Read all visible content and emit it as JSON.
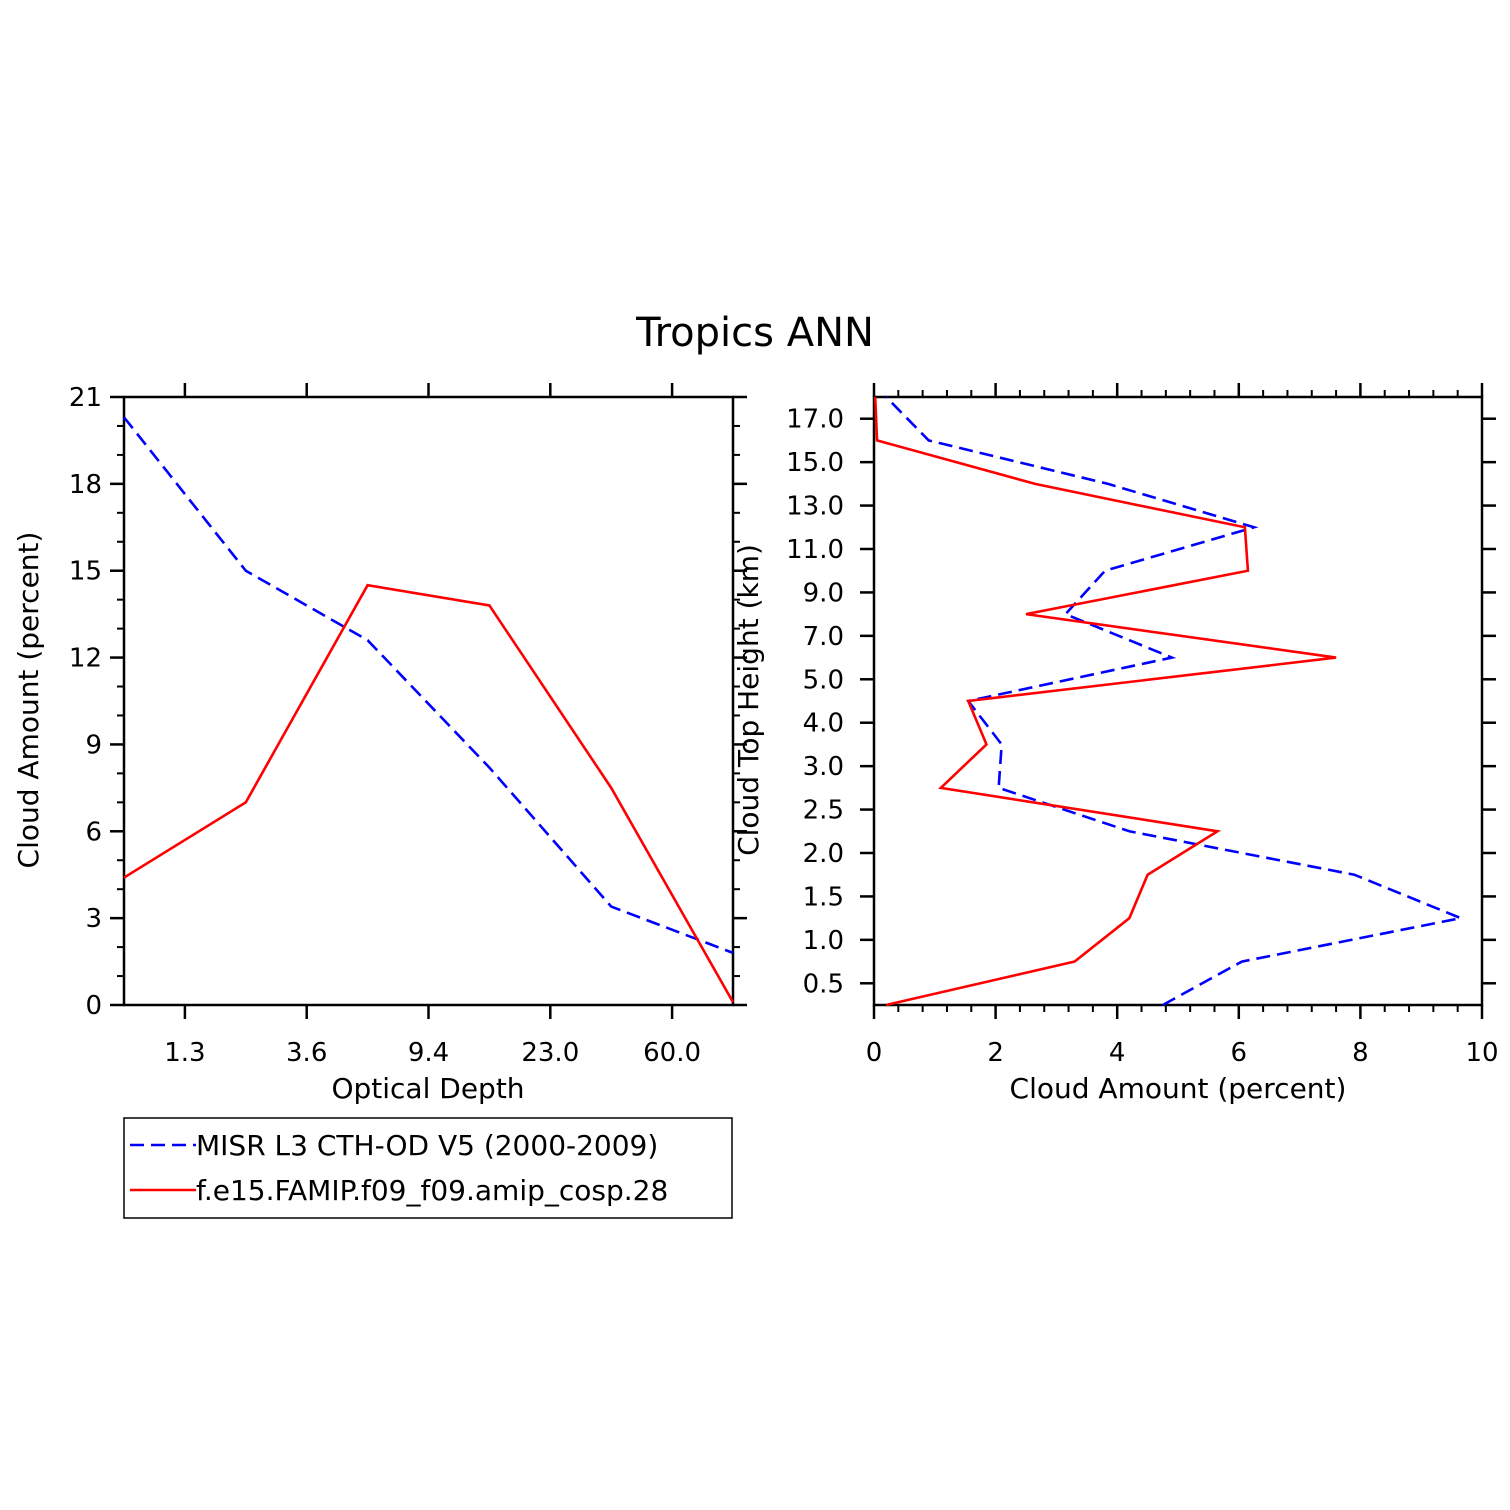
{
  "title": "Tropics ANN",
  "colors": {
    "obs": "#0000ff",
    "model": "#ff0000",
    "axis": "#000000"
  },
  "legend": [
    {
      "label": "MISR L3 CTH-OD V5 (2000-2009)",
      "color": "#0000ff",
      "dash": true
    },
    {
      "label": "f.e15.FAMIP.f09_f09.amip_cosp.28",
      "color": "#ff0000",
      "dash": false
    }
  ],
  "chart_data": [
    {
      "type": "line",
      "xlabel": "Optical Depth",
      "ylabel": "Cloud Amount (percent)",
      "x_tick_labels": [
        "1.3",
        "3.6",
        "9.4",
        "23.0",
        "60.0"
      ],
      "x_tick_positions": [
        1,
        2,
        3,
        4,
        5
      ],
      "xlim": [
        0.5,
        5.5
      ],
      "x": [
        0.5,
        1.5,
        2.5,
        3.5,
        4.5,
        5.5
      ],
      "ylim": [
        0,
        21
      ],
      "y_ticks": [
        0,
        3,
        6,
        9,
        12,
        15,
        18,
        21
      ],
      "series": [
        {
          "name": "MISR L3 CTH-OD V5 (2000-2009)",
          "values": [
            20.3,
            15.0,
            12.6,
            8.2,
            3.4,
            1.8
          ]
        },
        {
          "name": "f.e15.FAMIP.f09_f09.amip_cosp.28",
          "values": [
            4.4,
            7.0,
            14.5,
            13.8,
            7.5,
            0.1
          ]
        }
      ]
    },
    {
      "type": "line",
      "xlabel": "Cloud Amount (percent)",
      "ylabel": "Cloud Top Height (km)",
      "xlim": [
        0,
        10
      ],
      "x_ticks": [
        0,
        2,
        4,
        6,
        8,
        10
      ],
      "y_tick_labels": [
        "0.5",
        "1.0",
        "1.5",
        "2.0",
        "2.5",
        "3.0",
        "4.0",
        "5.0",
        "7.0",
        "9.0",
        "11.0",
        "13.0",
        "15.0",
        "17.0"
      ],
      "y_tick_positions": [
        1,
        2,
        3,
        4,
        5,
        6,
        7,
        8,
        9,
        10,
        11,
        12,
        13,
        14
      ],
      "ylim": [
        0.5,
        14.5
      ],
      "y": [
        0.5,
        1.5,
        2.5,
        3.5,
        4.5,
        5.5,
        6.5,
        7.5,
        8.5,
        9.5,
        10.5,
        11.5,
        12.5,
        13.5,
        14.5
      ],
      "series": [
        {
          "name": "MISR L3 CTH-OD V5 (2000-2009)",
          "values": [
            4.75,
            6.05,
            9.65,
            7.9,
            4.2,
            2.05,
            2.1,
            1.55,
            4.9,
            3.15,
            3.8,
            6.25,
            3.85,
            0.9,
            0.2
          ]
        },
        {
          "name": "f.e15.FAMIP.f09_f09.amip_cosp.28",
          "values": [
            0.2,
            3.3,
            4.2,
            4.5,
            5.65,
            1.1,
            1.85,
            1.55,
            7.6,
            2.5,
            6.15,
            6.1,
            2.65,
            0.05,
            0.02
          ]
        }
      ]
    }
  ]
}
